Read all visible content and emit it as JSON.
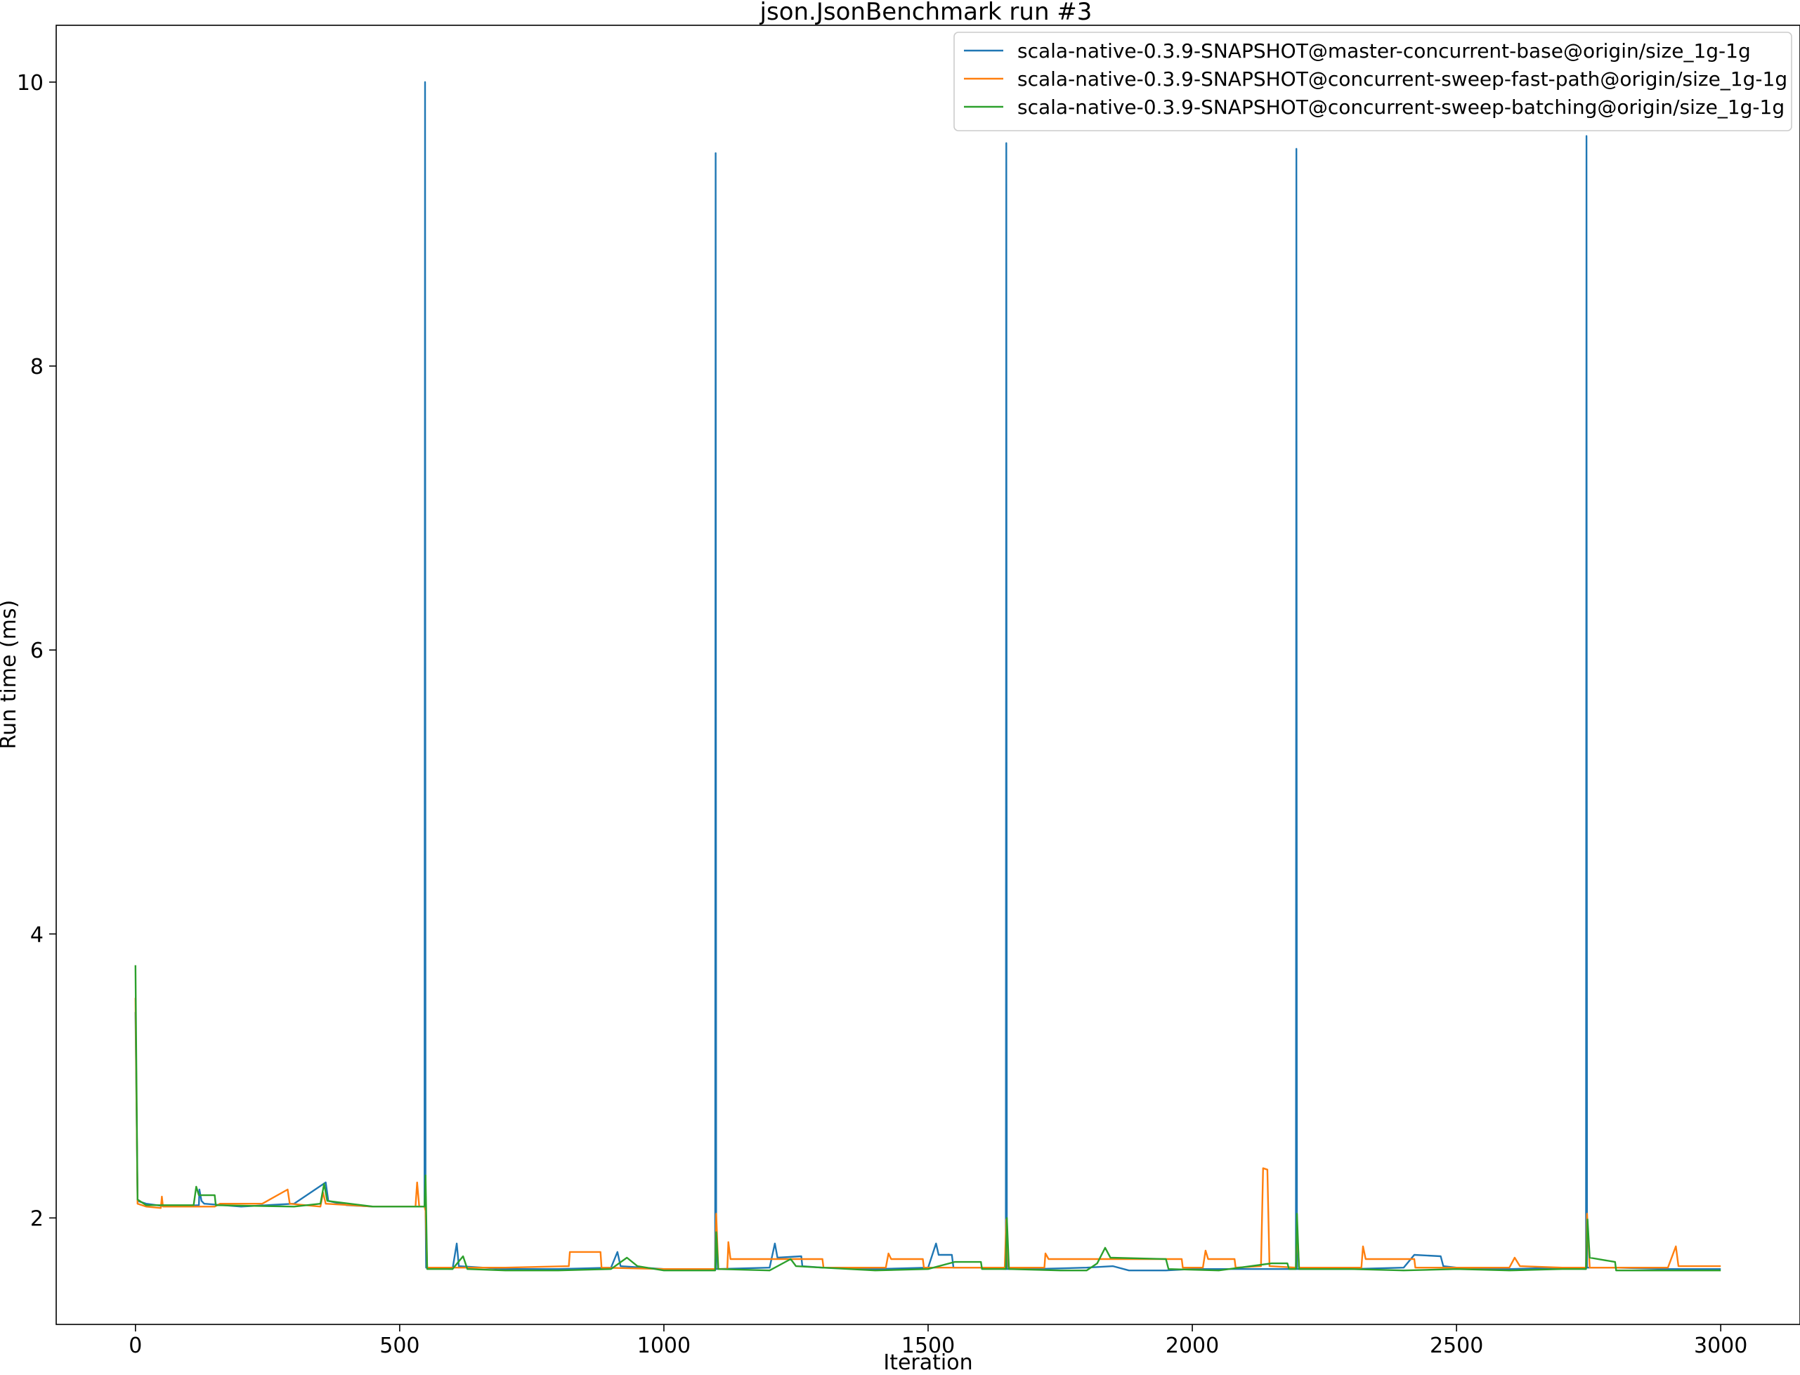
{
  "chart_data": {
    "type": "line",
    "title": "json.JsonBenchmark run #3",
    "xlabel": "Iteration",
    "ylabel": "Run time (ms)",
    "xlim": [
      -150,
      3150
    ],
    "ylim": [
      1.25,
      10.4
    ],
    "x_ticks": [
      0,
      500,
      1000,
      1500,
      2000,
      2500,
      3000
    ],
    "y_ticks": [
      2,
      4,
      6,
      8,
      10
    ],
    "legend_position": "top-right",
    "grid": false,
    "series": [
      {
        "name": "scala-native-0.3.9-SNAPSHOT@master-concurrent-base@origin/size_1g-1g",
        "color": "#1f77b4",
        "points": [
          [
            0,
            3.45
          ],
          [
            4,
            2.12
          ],
          [
            20,
            2.1
          ],
          [
            60,
            2.08
          ],
          [
            120,
            2.09
          ],
          [
            121,
            2.2
          ],
          [
            125,
            2.12
          ],
          [
            130,
            2.1
          ],
          [
            200,
            2.08
          ],
          [
            300,
            2.1
          ],
          [
            360,
            2.25
          ],
          [
            365,
            2.12
          ],
          [
            400,
            2.09
          ],
          [
            450,
            2.08
          ],
          [
            500,
            2.08
          ],
          [
            540,
            2.08
          ],
          [
            547,
            2.08
          ],
          [
            548,
            10.0
          ],
          [
            549,
            2.08
          ],
          [
            550,
            1.65
          ],
          [
            600,
            1.64
          ],
          [
            608,
            1.82
          ],
          [
            612,
            1.66
          ],
          [
            700,
            1.64
          ],
          [
            800,
            1.64
          ],
          [
            900,
            1.65
          ],
          [
            912,
            1.76
          ],
          [
            918,
            1.66
          ],
          [
            1000,
            1.64
          ],
          [
            1090,
            1.64
          ],
          [
            1097,
            1.64
          ],
          [
            1098,
            9.5
          ],
          [
            1099,
            1.64
          ],
          [
            1100,
            1.64
          ],
          [
            1200,
            1.65
          ],
          [
            1210,
            1.82
          ],
          [
            1215,
            1.72
          ],
          [
            1260,
            1.73
          ],
          [
            1262,
            1.66
          ],
          [
            1300,
            1.65
          ],
          [
            1400,
            1.64
          ],
          [
            1500,
            1.65
          ],
          [
            1515,
            1.82
          ],
          [
            1520,
            1.74
          ],
          [
            1545,
            1.74
          ],
          [
            1548,
            1.65
          ],
          [
            1600,
            1.65
          ],
          [
            1647,
            1.64
          ],
          [
            1648,
            9.57
          ],
          [
            1649,
            1.64
          ],
          [
            1700,
            1.64
          ],
          [
            1800,
            1.65
          ],
          [
            1850,
            1.66
          ],
          [
            1880,
            1.63
          ],
          [
            1950,
            1.63
          ],
          [
            2000,
            1.64
          ],
          [
            2100,
            1.64
          ],
          [
            2196,
            1.64
          ],
          [
            2197,
            9.53
          ],
          [
            2198,
            1.64
          ],
          [
            2300,
            1.64
          ],
          [
            2400,
            1.65
          ],
          [
            2420,
            1.74
          ],
          [
            2470,
            1.73
          ],
          [
            2475,
            1.66
          ],
          [
            2500,
            1.65
          ],
          [
            2600,
            1.64
          ],
          [
            2700,
            1.65
          ],
          [
            2745,
            1.64
          ],
          [
            2746,
            9.62
          ],
          [
            2747,
            1.65
          ],
          [
            2800,
            1.65
          ],
          [
            2900,
            1.64
          ],
          [
            3000,
            1.64
          ]
        ]
      },
      {
        "name": "scala-native-0.3.9-SNAPSHOT@concurrent-sweep-fast-path@origin/size_1g-1g",
        "color": "#ff7f0e",
        "points": [
          [
            0,
            3.55
          ],
          [
            4,
            2.1
          ],
          [
            20,
            2.08
          ],
          [
            48,
            2.07
          ],
          [
            50,
            2.15
          ],
          [
            52,
            2.08
          ],
          [
            150,
            2.08
          ],
          [
            160,
            2.1
          ],
          [
            240,
            2.1
          ],
          [
            288,
            2.2
          ],
          [
            292,
            2.1
          ],
          [
            350,
            2.08
          ],
          [
            355,
            2.18
          ],
          [
            360,
            2.1
          ],
          [
            450,
            2.08
          ],
          [
            530,
            2.08
          ],
          [
            533,
            2.25
          ],
          [
            537,
            2.08
          ],
          [
            547,
            2.08
          ],
          [
            549,
            2.05
          ],
          [
            552,
            1.65
          ],
          [
            700,
            1.65
          ],
          [
            820,
            1.66
          ],
          [
            822,
            1.76
          ],
          [
            880,
            1.76
          ],
          [
            882,
            1.65
          ],
          [
            1000,
            1.64
          ],
          [
            1097,
            1.64
          ],
          [
            1099,
            2.03
          ],
          [
            1103,
            1.64
          ],
          [
            1120,
            1.64
          ],
          [
            1122,
            1.83
          ],
          [
            1126,
            1.71
          ],
          [
            1300,
            1.71
          ],
          [
            1302,
            1.65
          ],
          [
            1420,
            1.65
          ],
          [
            1425,
            1.75
          ],
          [
            1430,
            1.71
          ],
          [
            1490,
            1.71
          ],
          [
            1492,
            1.65
          ],
          [
            1600,
            1.65
          ],
          [
            1645,
            1.65
          ],
          [
            1648,
            1.99
          ],
          [
            1652,
            1.65
          ],
          [
            1720,
            1.65
          ],
          [
            1722,
            1.75
          ],
          [
            1728,
            1.71
          ],
          [
            1980,
            1.71
          ],
          [
            1982,
            1.65
          ],
          [
            2020,
            1.65
          ],
          [
            2025,
            1.77
          ],
          [
            2030,
            1.71
          ],
          [
            2080,
            1.71
          ],
          [
            2082,
            1.65
          ],
          [
            2130,
            1.66
          ],
          [
            2134,
            2.35
          ],
          [
            2142,
            2.34
          ],
          [
            2146,
            1.66
          ],
          [
            2196,
            1.65
          ],
          [
            2198,
            1.96
          ],
          [
            2202,
            1.65
          ],
          [
            2320,
            1.65
          ],
          [
            2323,
            1.8
          ],
          [
            2328,
            1.71
          ],
          [
            2420,
            1.71
          ],
          [
            2422,
            1.65
          ],
          [
            2600,
            1.65
          ],
          [
            2610,
            1.72
          ],
          [
            2620,
            1.66
          ],
          [
            2700,
            1.65
          ],
          [
            2745,
            1.65
          ],
          [
            2747,
            2.03
          ],
          [
            2752,
            1.65
          ],
          [
            2900,
            1.65
          ],
          [
            2915,
            1.8
          ],
          [
            2920,
            1.66
          ],
          [
            3000,
            1.66
          ]
        ]
      },
      {
        "name": "scala-native-0.3.9-SNAPSHOT@concurrent-sweep-batching@origin/size_1g-1g",
        "color": "#2ca02c",
        "points": [
          [
            0,
            3.78
          ],
          [
            4,
            2.13
          ],
          [
            20,
            2.09
          ],
          [
            110,
            2.09
          ],
          [
            115,
            2.22
          ],
          [
            120,
            2.16
          ],
          [
            150,
            2.16
          ],
          [
            152,
            2.09
          ],
          [
            300,
            2.08
          ],
          [
            350,
            2.1
          ],
          [
            357,
            2.24
          ],
          [
            363,
            2.12
          ],
          [
            450,
            2.08
          ],
          [
            547,
            2.08
          ],
          [
            549,
            2.3
          ],
          [
            552,
            1.64
          ],
          [
            600,
            1.64
          ],
          [
            620,
            1.73
          ],
          [
            628,
            1.64
          ],
          [
            700,
            1.63
          ],
          [
            800,
            1.63
          ],
          [
            900,
            1.64
          ],
          [
            930,
            1.72
          ],
          [
            950,
            1.66
          ],
          [
            1000,
            1.63
          ],
          [
            1097,
            1.63
          ],
          [
            1099,
            1.9
          ],
          [
            1103,
            1.64
          ],
          [
            1200,
            1.63
          ],
          [
            1240,
            1.71
          ],
          [
            1250,
            1.66
          ],
          [
            1400,
            1.63
          ],
          [
            1500,
            1.64
          ],
          [
            1550,
            1.69
          ],
          [
            1600,
            1.69
          ],
          [
            1602,
            1.64
          ],
          [
            1647,
            1.64
          ],
          [
            1649,
            2.0
          ],
          [
            1653,
            1.64
          ],
          [
            1750,
            1.63
          ],
          [
            1800,
            1.63
          ],
          [
            1820,
            1.68
          ],
          [
            1835,
            1.79
          ],
          [
            1845,
            1.72
          ],
          [
            1950,
            1.71
          ],
          [
            1955,
            1.64
          ],
          [
            2050,
            1.63
          ],
          [
            2150,
            1.68
          ],
          [
            2180,
            1.68
          ],
          [
            2183,
            1.64
          ],
          [
            2196,
            1.64
          ],
          [
            2198,
            2.03
          ],
          [
            2202,
            1.64
          ],
          [
            2300,
            1.64
          ],
          [
            2400,
            1.63
          ],
          [
            2500,
            1.64
          ],
          [
            2600,
            1.63
          ],
          [
            2700,
            1.64
          ],
          [
            2745,
            1.64
          ],
          [
            2748,
            1.99
          ],
          [
            2752,
            1.72
          ],
          [
            2800,
            1.69
          ],
          [
            2802,
            1.63
          ],
          [
            2900,
            1.63
          ],
          [
            3000,
            1.63
          ]
        ]
      }
    ]
  }
}
